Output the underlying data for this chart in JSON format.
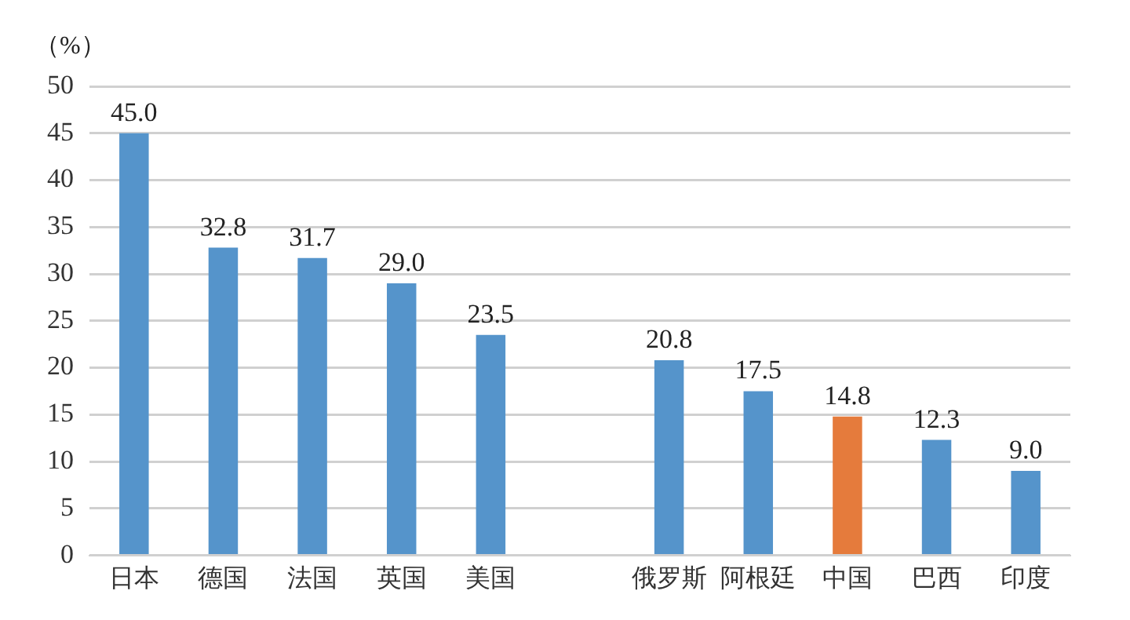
{
  "chart_data": {
    "type": "bar",
    "ylabel": "（%）",
    "categories": [
      "日本",
      "德国",
      "法国",
      "英国",
      "美国",
      null,
      "俄罗斯",
      "阿根廷",
      "中国",
      "巴西",
      "印度"
    ],
    "values": [
      45.0,
      32.8,
      31.7,
      29.0,
      23.5,
      null,
      20.8,
      17.5,
      14.8,
      12.3,
      9.0
    ],
    "value_labels": [
      "45.0",
      "32.8",
      "31.7",
      "29.0",
      "23.5",
      null,
      "20.8",
      "17.5",
      "14.8",
      "12.3",
      "9.0"
    ],
    "colors": [
      "#5594cb",
      "#5594cb",
      "#5594cb",
      "#5594cb",
      "#5594cb",
      "#5594cb",
      "#5594cb",
      "#5594cb",
      "#e57b3c",
      "#5594cb",
      "#5594cb"
    ],
    "ylim": [
      0,
      50
    ],
    "yticks": [
      0,
      5,
      10,
      15,
      20,
      25,
      30,
      35,
      40,
      45,
      50
    ],
    "grid": "y",
    "legend": false
  }
}
